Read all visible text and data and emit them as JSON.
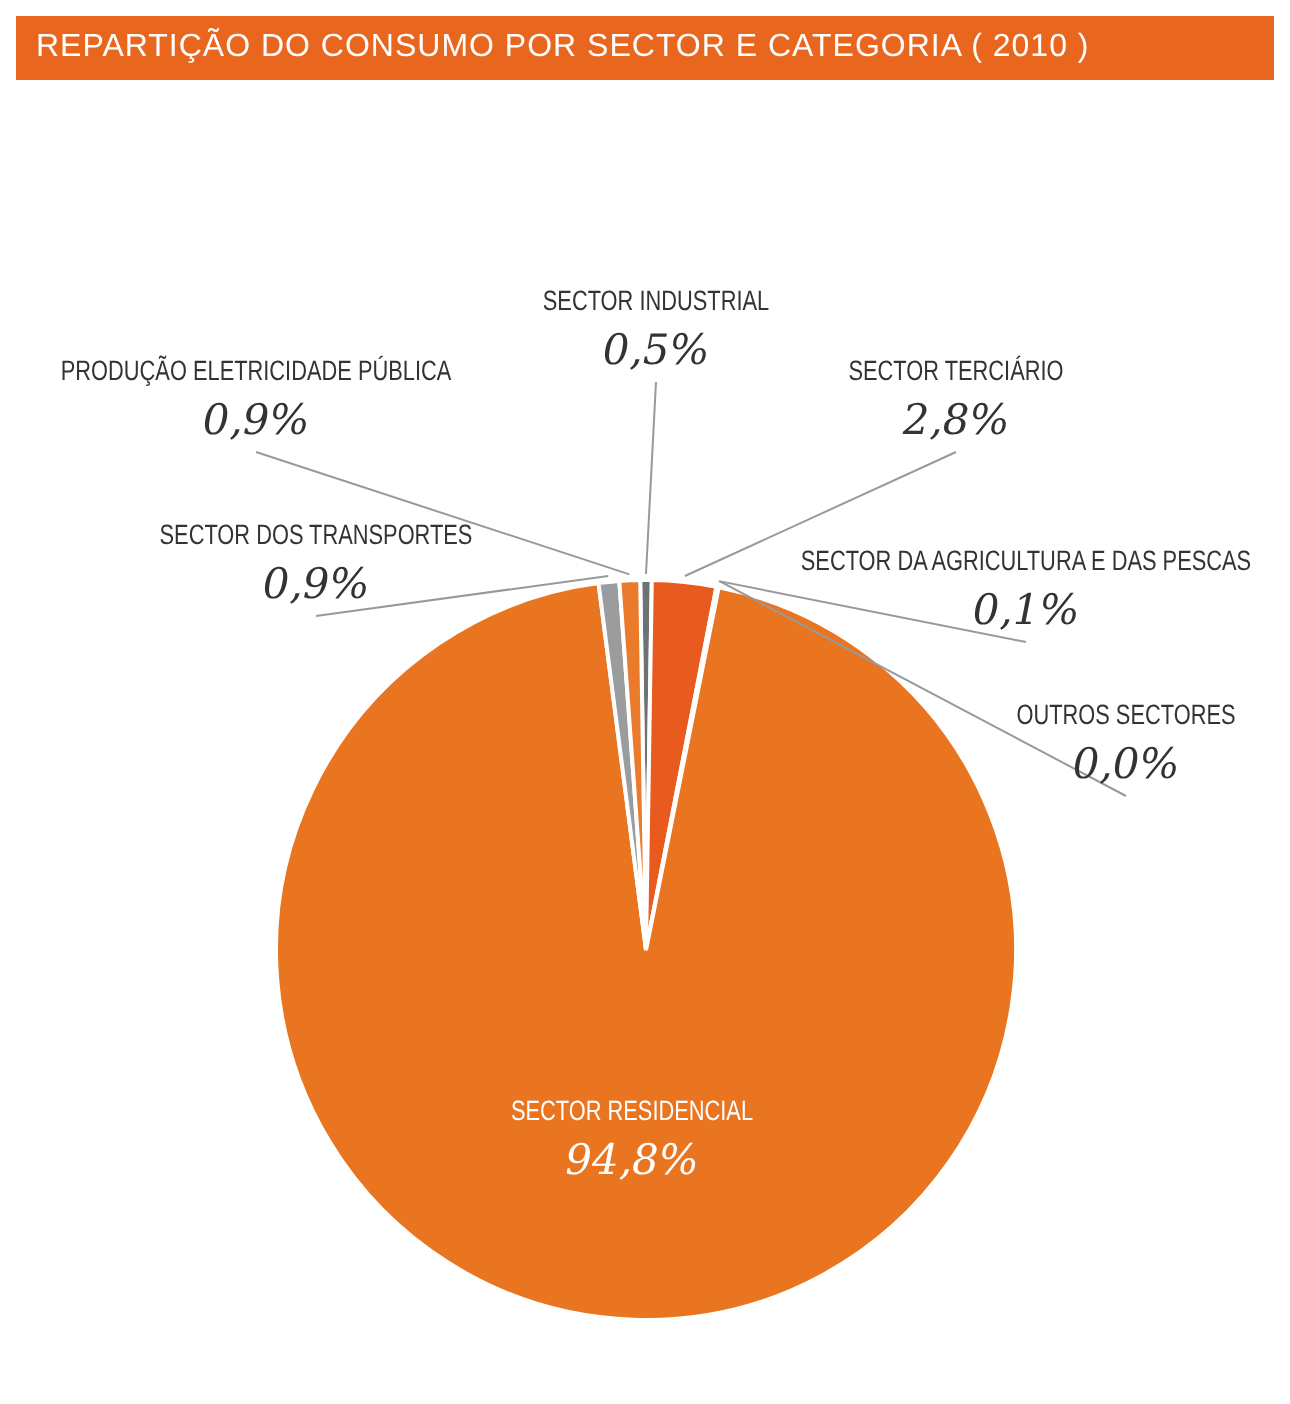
{
  "chart_data": {
    "type": "pie",
    "title": "REPARTIÇÃO DO CONSUMO POR SECTOR E CATEGORIA ( 2010 )",
    "categories": [
      "SECTOR INDUSTRIAL",
      "SECTOR TERCIÁRIO",
      "SECTOR DA AGRICULTURA E DAS PESCAS",
      "OUTROS SECTORES",
      "SECTOR RESIDENCIAL",
      "SECTOR DOS TRANSPORTES",
      "PRODUÇÃO ELETRICIDADE PÚBLICA"
    ],
    "values": [
      0.5,
      2.8,
      0.1,
      0.0,
      94.8,
      0.9,
      0.9
    ],
    "colors": [
      "#6d7275",
      "#e85a1e",
      "#a7a9ab",
      "#c8c8c8",
      "#e97520",
      "#9a9c9e",
      "#ea7a2c"
    ],
    "value_labels": [
      "0,5%",
      "2,8%",
      "0,1%",
      "0,0%",
      "94,8%",
      "0,9%",
      "0,9%"
    ],
    "legend": false
  }
}
